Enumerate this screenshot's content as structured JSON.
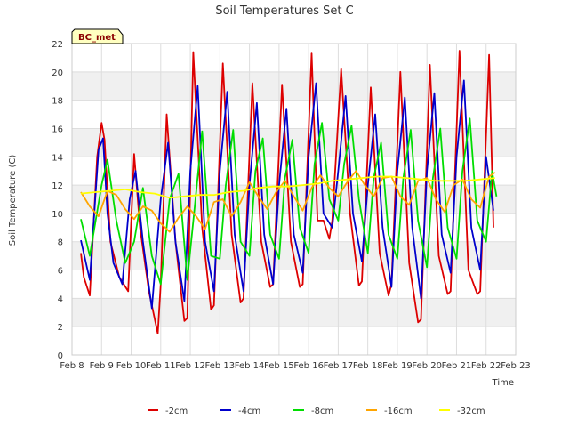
{
  "chart_data": {
    "type": "line",
    "title": "Soil Temperatures Set C",
    "xlabel": "Time",
    "ylabel": "Soil Temperature (C)",
    "badge": "BC_met",
    "xlim": [
      8,
      23
    ],
    "ylim": [
      0,
      22
    ],
    "x_ticks": [
      8,
      9,
      10,
      11,
      12,
      13,
      14,
      15,
      16,
      17,
      18,
      19,
      20,
      21,
      22,
      23
    ],
    "x_tick_labels": [
      "Feb 8",
      "Feb 9",
      "Feb 10",
      "Feb 11",
      "Feb 12",
      "Feb 13",
      "Feb 14",
      "Feb 15",
      "Feb 16",
      "Feb 17",
      "Feb 18",
      "Feb 19",
      "Feb 20",
      "Feb 21",
      "Feb 22",
      "Feb 23"
    ],
    "y_ticks": [
      0,
      2,
      4,
      6,
      8,
      10,
      12,
      14,
      16,
      18,
      20,
      22
    ],
    "y_tick_labels": [
      "0",
      "2",
      "4",
      "6",
      "8",
      "10",
      "12",
      "14",
      "16",
      "18",
      "20",
      "22"
    ],
    "grid": true,
    "legend_position": "bottom",
    "series": [
      {
        "name": "-2cm",
        "color": "#dd0000",
        "x": [
          8.3,
          8.4,
          8.6,
          8.85,
          9.0,
          9.1,
          9.3,
          9.6,
          9.9,
          10.1,
          10.3,
          10.6,
          10.9,
          11.0,
          11.2,
          11.5,
          11.8,
          11.9,
          12.1,
          12.4,
          12.7,
          12.8,
          13.1,
          13.4,
          13.7,
          13.8,
          14.1,
          14.4,
          14.7,
          14.8,
          15.1,
          15.4,
          15.7,
          15.8,
          16.1,
          16.3,
          16.5,
          16.7,
          16.8,
          17.1,
          17.4,
          17.7,
          17.8,
          18.1,
          18.4,
          18.7,
          18.8,
          19.1,
          19.4,
          19.7,
          19.8,
          20.1,
          20.4,
          20.7,
          20.8,
          21.1,
          21.4,
          21.7,
          21.8,
          22.1,
          22.25
        ],
        "y": [
          7.2,
          5.5,
          4.2,
          14.0,
          16.4,
          15.2,
          8.0,
          5.5,
          4.5,
          14.2,
          9.0,
          4.5,
          1.5,
          5.0,
          17.0,
          8.0,
          2.4,
          2.6,
          21.4,
          9.0,
          3.2,
          3.5,
          20.6,
          8.5,
          3.7,
          4.0,
          19.2,
          8.0,
          4.8,
          5.0,
          19.1,
          8.0,
          4.8,
          5.0,
          21.3,
          9.5,
          9.5,
          8.2,
          9.5,
          20.2,
          10.0,
          4.9,
          5.2,
          18.9,
          7.2,
          4.2,
          5.0,
          20.0,
          6.5,
          2.3,
          2.5,
          20.5,
          7.0,
          4.3,
          4.5,
          21.5,
          6.0,
          4.3,
          4.5,
          21.2,
          9.0
        ]
      },
      {
        "name": "-4cm",
        "color": "#0000cc",
        "x": [
          8.3,
          8.6,
          8.9,
          9.05,
          9.2,
          9.4,
          9.7,
          9.95,
          10.15,
          10.4,
          10.7,
          11.0,
          11.25,
          11.5,
          11.8,
          12.0,
          12.25,
          12.5,
          12.8,
          13.0,
          13.25,
          13.5,
          13.8,
          14.0,
          14.25,
          14.5,
          14.8,
          15.0,
          15.25,
          15.5,
          15.8,
          16.0,
          16.25,
          16.5,
          16.8,
          17.0,
          17.25,
          17.5,
          17.8,
          18.0,
          18.25,
          18.5,
          18.8,
          19.0,
          19.25,
          19.5,
          19.8,
          20.0,
          20.25,
          20.5,
          20.8,
          21.0,
          21.25,
          21.5,
          21.8,
          22.0,
          22.25
        ],
        "y": [
          8.1,
          5.3,
          14.5,
          15.3,
          10.0,
          6.5,
          5.0,
          11.0,
          13.0,
          8.0,
          3.3,
          11.0,
          15.0,
          8.0,
          3.8,
          13.0,
          19.0,
          8.0,
          4.5,
          13.0,
          18.6,
          8.5,
          4.5,
          12.0,
          17.8,
          8.5,
          5.0,
          12.0,
          17.4,
          8.5,
          5.8,
          14.0,
          19.2,
          10.0,
          9.0,
          13.0,
          18.3,
          10.0,
          6.6,
          12.0,
          17.0,
          9.0,
          4.8,
          13.0,
          18.2,
          9.0,
          4.0,
          13.0,
          18.5,
          8.5,
          5.8,
          14.0,
          19.4,
          9.0,
          6.0,
          14.0,
          10.2
        ]
      },
      {
        "name": "-8cm",
        "color": "#00dd00",
        "x": [
          8.3,
          8.6,
          9.0,
          9.2,
          9.5,
          9.8,
          10.1,
          10.4,
          10.7,
          11.0,
          11.3,
          11.6,
          11.9,
          12.15,
          12.4,
          12.7,
          13.0,
          13.2,
          13.45,
          13.7,
          14.0,
          14.2,
          14.45,
          14.7,
          15.0,
          15.2,
          15.45,
          15.7,
          16.0,
          16.2,
          16.45,
          16.7,
          17.0,
          17.2,
          17.45,
          17.7,
          18.0,
          18.2,
          18.45,
          18.7,
          19.0,
          19.2,
          19.45,
          19.7,
          20.0,
          20.2,
          20.45,
          20.7,
          21.0,
          21.2,
          21.45,
          21.7,
          22.0,
          22.2,
          22.35
        ],
        "y": [
          9.6,
          7.0,
          12.0,
          13.8,
          9.5,
          6.5,
          8.0,
          11.8,
          7.0,
          5.0,
          11.0,
          12.8,
          5.3,
          10.5,
          15.8,
          7.0,
          6.8,
          12.0,
          15.9,
          8.0,
          7.0,
          13.0,
          15.3,
          8.5,
          6.8,
          12.5,
          15.2,
          9.0,
          7.2,
          13.5,
          16.4,
          11.0,
          9.5,
          13.5,
          16.2,
          11.0,
          7.2,
          12.5,
          15.0,
          8.5,
          6.8,
          12.5,
          15.9,
          9.5,
          6.2,
          12.5,
          16.0,
          9.0,
          6.8,
          13.0,
          16.7,
          9.5,
          8.0,
          13.0,
          11.2
        ]
      },
      {
        "name": "-16cm",
        "color": "#ffa500",
        "x": [
          8.3,
          8.6,
          8.9,
          9.2,
          9.5,
          9.8,
          10.1,
          10.4,
          10.7,
          11.0,
          11.3,
          11.6,
          11.9,
          12.2,
          12.5,
          12.8,
          13.1,
          13.4,
          13.7,
          14.0,
          14.3,
          14.6,
          14.9,
          15.2,
          15.5,
          15.8,
          16.1,
          16.4,
          16.7,
          17.0,
          17.3,
          17.6,
          17.9,
          18.2,
          18.5,
          18.8,
          19.1,
          19.4,
          19.7,
          20.0,
          20.3,
          20.6,
          20.9,
          21.2,
          21.5,
          21.8,
          22.1,
          22.3
        ],
        "y": [
          11.5,
          10.5,
          9.8,
          11.6,
          11.3,
          10.3,
          9.6,
          10.5,
          10.2,
          9.3,
          8.7,
          9.7,
          10.5,
          9.8,
          8.9,
          10.8,
          11.0,
          9.8,
          10.8,
          12.2,
          11.2,
          10.3,
          11.5,
          12.3,
          11.2,
          10.2,
          11.8,
          12.7,
          11.8,
          11.2,
          12.2,
          13.0,
          12.0,
          11.2,
          12.5,
          12.6,
          11.2,
          10.6,
          12.3,
          12.5,
          11.0,
          10.1,
          12.0,
          12.4,
          11.0,
          10.4,
          12.6,
          12.9
        ]
      },
      {
        "name": "-32cm",
        "color": "#ffff00",
        "x": [
          8.3,
          8.8,
          9.3,
          9.8,
          10.3,
          10.8,
          11.3,
          11.8,
          12.3,
          12.8,
          13.3,
          13.8,
          14.3,
          14.8,
          15.3,
          15.8,
          16.3,
          16.8,
          17.3,
          17.8,
          18.3,
          18.8,
          19.3,
          19.8,
          20.3,
          20.8,
          21.3,
          21.8,
          22.3
        ],
        "y": [
          11.4,
          11.5,
          11.6,
          11.7,
          11.5,
          11.4,
          11.1,
          11.2,
          11.3,
          11.3,
          11.5,
          11.6,
          11.8,
          11.9,
          11.9,
          12.0,
          12.1,
          12.3,
          12.4,
          12.5,
          12.6,
          12.6,
          12.5,
          12.4,
          12.3,
          12.3,
          12.3,
          12.4,
          12.5
        ]
      }
    ]
  }
}
